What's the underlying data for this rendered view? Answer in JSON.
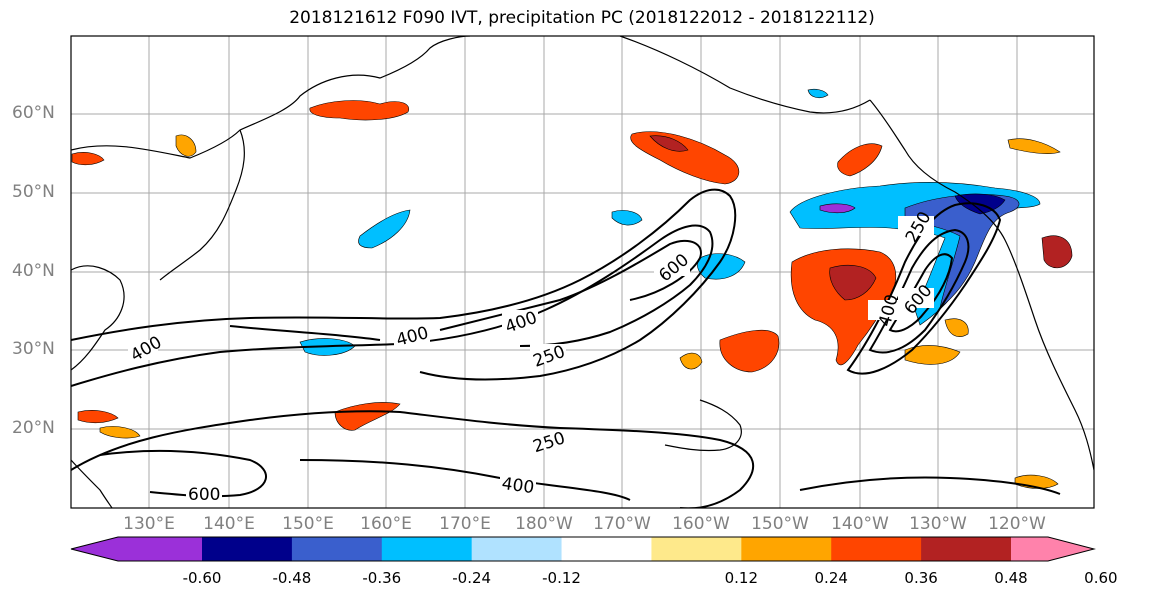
{
  "figure": {
    "title": "2018121612 F090 IVT, precipitation PC (2018122012 - 2018122112)"
  },
  "axes": {
    "lat_labels": [
      "60°N",
      "50°N",
      "40°N",
      "30°N",
      "20°N"
    ],
    "lon_labels": [
      "130°E",
      "140°E",
      "150°E",
      "160°E",
      "170°E",
      "180°W",
      "170°W",
      "160°W",
      "150°W",
      "140°W",
      "130°W",
      "120°W"
    ]
  },
  "contours": {
    "labels": [
      "400",
      "400",
      "400",
      "250",
      "600",
      "250",
      "400",
      "600",
      "250",
      "400",
      "600"
    ]
  },
  "colorbar": {
    "colors": [
      "#9b30d9",
      "#00008b",
      "#3a5fcd",
      "#00bfff",
      "#b0e2ff",
      "#ffffff",
      "#fee98b",
      "#ffa500",
      "#ff4500",
      "#b22222",
      "#ff82ab"
    ],
    "tick_labels": [
      "-0.60",
      "-0.48",
      "-0.36",
      "-0.24",
      "-0.12",
      "0.12",
      "0.24",
      "0.36",
      "0.48",
      "0.60"
    ]
  }
}
